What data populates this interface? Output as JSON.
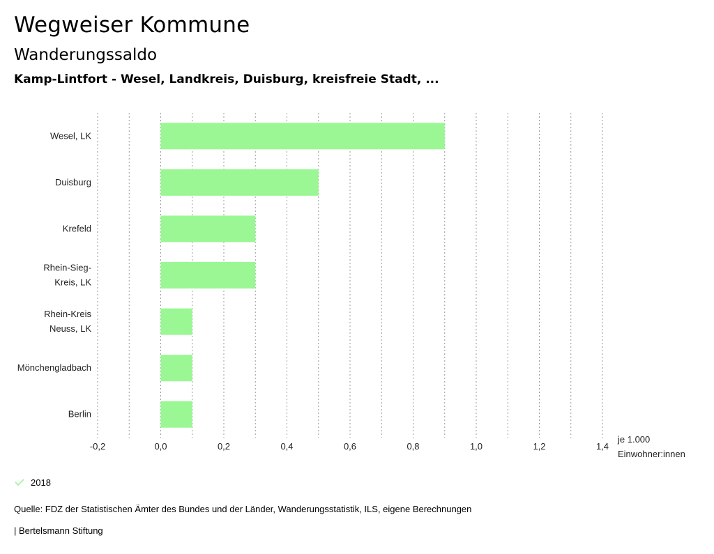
{
  "header": {
    "title": "Wegweiser Kommune",
    "subtitle": "Wanderungssaldo",
    "region": "Kamp-Lintfort - Wesel, Landkreis, Duisburg, kreisfreie Stadt, ..."
  },
  "chart_data": {
    "type": "bar",
    "orientation": "horizontal",
    "categories": [
      [
        "Wesel, LK"
      ],
      [
        "Duisburg"
      ],
      [
        "Krefeld"
      ],
      [
        "Rhein-Sieg-",
        "Kreis, LK"
      ],
      [
        "Rhein-Kreis",
        "Neuss, LK"
      ],
      [
        "Mönchengladbach"
      ],
      [
        "Berlin"
      ]
    ],
    "series": [
      {
        "name": "2018",
        "values": [
          0.9,
          0.5,
          0.3,
          0.3,
          0.1,
          0.1,
          0.1
        ],
        "color": "#9af794"
      }
    ],
    "xlim": [
      -0.2,
      1.4
    ],
    "xticks": [
      -0.2,
      0.0,
      0.2,
      0.4,
      0.6,
      0.8,
      1.0,
      1.2,
      1.4
    ],
    "xtick_labels": [
      "-0,2",
      "0,0",
      "0,2",
      "0,4",
      "0,6",
      "0,8",
      "1,0",
      "1,2",
      "1,4"
    ],
    "unit_label": [
      "je 1.000",
      "Einwohner:innen"
    ],
    "grid": "vertical-dotted"
  },
  "legend": {
    "label": "2018",
    "color": "#9af794"
  },
  "footer": {
    "source": "Quelle: FDZ der Statistischen Ämter des Bundes und der Länder, Wanderungsstatistik, ILS, eigene Berechnungen",
    "brand": "| Bertelsmann Stiftung"
  }
}
